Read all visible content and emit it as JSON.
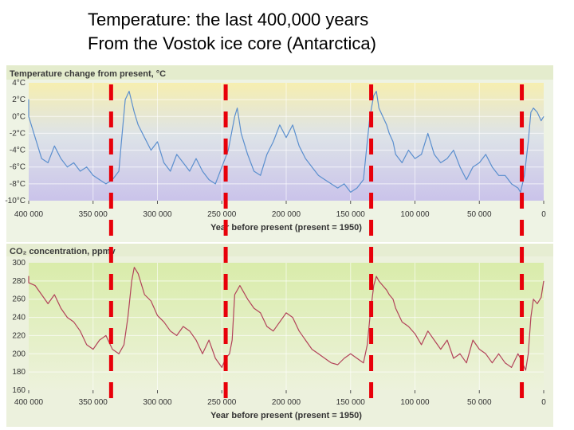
{
  "slide": {
    "title_line1": "Temperature:  the last 400,000 years",
    "title_line2": "From the Vostok ice core (Antarctica)"
  },
  "colors": {
    "temperature_line": "#5b8fce",
    "co2_line": "#b2435a",
    "marker": "#e8000a",
    "top_panel_gradient": [
      "#f6eeb0",
      "#d9dfee",
      "#c9c3ea"
    ],
    "bottom_panel_gradient": [
      "#dcedb0",
      "#eaf0d8"
    ]
  },
  "chart_data": [
    {
      "type": "line",
      "title": "Temperature change from present, °C",
      "xlabel": "Year before present (present = 1950)",
      "ylabel": "",
      "xlim": [
        400000,
        0
      ],
      "ylim": [
        -10,
        4
      ],
      "x_ticks": [
        400000,
        350000,
        300000,
        250000,
        200000,
        150000,
        100000,
        50000,
        0
      ],
      "x_tick_labels": [
        "400 000",
        "350 000",
        "300 000",
        "250 000",
        "200 000",
        "150 000",
        "100 000",
        "50 000",
        "0"
      ],
      "y_ticks": [
        4,
        2,
        0,
        -2,
        -4,
        -6,
        -8,
        -10
      ],
      "y_tick_labels": [
        "4°C",
        "2°C",
        "0°C",
        "-2°C",
        "-4°C",
        "-6°C",
        "-8°C",
        "-10°C"
      ],
      "grid": true,
      "series": [
        {
          "x": [
            410000,
            405000,
            400000,
            395000,
            390000,
            385000,
            380000,
            375000,
            370000,
            365000,
            360000,
            355000,
            350000,
            345000,
            340000,
            335000,
            330000,
            328000,
            325000,
            322000,
            318000,
            315000,
            310000,
            305000,
            300000,
            295000,
            290000,
            285000,
            280000,
            275000,
            270000,
            265000,
            260000,
            255000,
            250000,
            245000,
            240000,
            238000,
            235000,
            230000,
            225000,
            220000,
            215000,
            210000,
            205000,
            200000,
            195000,
            190000,
            185000,
            180000,
            175000,
            170000,
            165000,
            160000,
            155000,
            150000,
            145000,
            140000,
            137000,
            135000,
            132000,
            130000,
            128000,
            125000,
            122000,
            120000,
            117000,
            115000,
            110000,
            105000,
            100000,
            95000,
            90000,
            85000,
            80000,
            75000,
            70000,
            65000,
            60000,
            55000,
            50000,
            45000,
            40000,
            35000,
            30000,
            25000,
            20000,
            18000,
            15000,
            12000,
            10000,
            8000,
            5000,
            2000,
            0
          ],
          "y": [
            0.5,
            2.0,
            0.0,
            -2.5,
            -5.0,
            -5.5,
            -3.5,
            -5.0,
            -6.0,
            -5.5,
            -6.5,
            -6.0,
            -7.0,
            -7.5,
            -8.0,
            -7.5,
            -6.5,
            -3.0,
            2.0,
            3.0,
            0.5,
            -1.0,
            -2.5,
            -4.0,
            -3.0,
            -5.5,
            -6.5,
            -4.5,
            -5.5,
            -6.5,
            -5.0,
            -6.5,
            -7.5,
            -8.0,
            -6.0,
            -4.0,
            0.0,
            1.0,
            -2.0,
            -4.5,
            -6.5,
            -7.0,
            -4.5,
            -3.0,
            -1.0,
            -2.5,
            -1.0,
            -3.5,
            -5.0,
            -6.0,
            -7.0,
            -7.5,
            -8.0,
            -8.5,
            -8.0,
            -9.0,
            -8.5,
            -7.5,
            -3.0,
            0.0,
            2.5,
            3.0,
            1.0,
            0.0,
            -1.0,
            -2.0,
            -3.0,
            -4.5,
            -5.5,
            -4.0,
            -5.0,
            -4.5,
            -2.0,
            -4.5,
            -5.5,
            -5.0,
            -4.0,
            -6.0,
            -7.5,
            -6.0,
            -5.5,
            -4.5,
            -6.0,
            -7.0,
            -7.0,
            -8.0,
            -8.5,
            -9.0,
            -7.0,
            -3.0,
            0.5,
            1.0,
            0.5,
            -0.5,
            0.0
          ]
        }
      ]
    },
    {
      "type": "line",
      "title": "CO₂ concentration, ppmv",
      "xlabel": "Year before present (present = 1950)",
      "ylabel": "",
      "xlim": [
        400000,
        0
      ],
      "ylim": [
        160,
        300
      ],
      "x_ticks": [
        400000,
        350000,
        300000,
        250000,
        200000,
        150000,
        100000,
        50000,
        0
      ],
      "x_tick_labels": [
        "400 000",
        "350 000",
        "300 000",
        "250 000",
        "200 000",
        "150 000",
        "100 000",
        "50 000",
        "0"
      ],
      "y_ticks": [
        300,
        280,
        260,
        240,
        220,
        200,
        180,
        160
      ],
      "y_tick_labels": [
        "300",
        "280",
        "260",
        "240",
        "220",
        "200",
        "180",
        "160"
      ],
      "grid": true,
      "series": [
        {
          "x": [
            410000,
            405000,
            400000,
            395000,
            390000,
            385000,
            380000,
            375000,
            370000,
            365000,
            360000,
            355000,
            350000,
            345000,
            340000,
            335000,
            330000,
            326000,
            323000,
            320000,
            318000,
            315000,
            310000,
            305000,
            300000,
            295000,
            290000,
            285000,
            280000,
            275000,
            270000,
            265000,
            260000,
            255000,
            250000,
            247000,
            244000,
            242000,
            240000,
            236000,
            230000,
            225000,
            220000,
            215000,
            210000,
            205000,
            200000,
            195000,
            190000,
            185000,
            180000,
            175000,
            170000,
            165000,
            160000,
            155000,
            150000,
            145000,
            140000,
            137000,
            135000,
            132000,
            130000,
            128000,
            125000,
            122000,
            120000,
            117000,
            115000,
            110000,
            105000,
            100000,
            95000,
            90000,
            85000,
            80000,
            75000,
            70000,
            65000,
            60000,
            55000,
            50000,
            45000,
            40000,
            35000,
            30000,
            25000,
            20000,
            18000,
            16000,
            14000,
            12000,
            10000,
            8000,
            5000,
            2000,
            0
          ],
          "y": [
            280,
            285,
            278,
            275,
            265,
            255,
            265,
            250,
            240,
            235,
            225,
            210,
            205,
            215,
            220,
            205,
            200,
            210,
            240,
            280,
            295,
            288,
            265,
            258,
            242,
            235,
            225,
            220,
            230,
            225,
            215,
            200,
            215,
            195,
            185,
            195,
            200,
            215,
            265,
            275,
            260,
            250,
            245,
            230,
            225,
            235,
            245,
            240,
            225,
            215,
            205,
            200,
            195,
            190,
            188,
            195,
            200,
            195,
            190,
            210,
            240,
            275,
            285,
            280,
            275,
            270,
            265,
            260,
            250,
            235,
            230,
            222,
            210,
            225,
            215,
            205,
            215,
            195,
            200,
            190,
            215,
            205,
            200,
            190,
            200,
            190,
            185,
            200,
            195,
            188,
            182,
            200,
            240,
            260,
            255,
            262,
            280
          ]
        }
      ]
    }
  ],
  "markers": {
    "x_years": [
      336000,
      247000,
      134000,
      17000
    ]
  }
}
